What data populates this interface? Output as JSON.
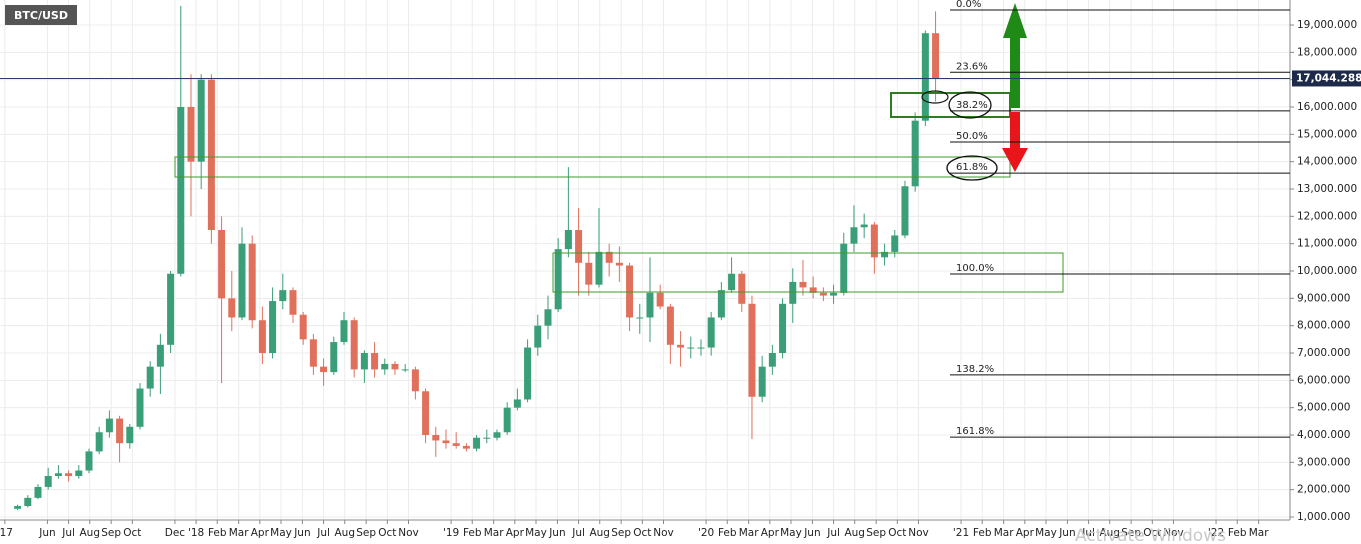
{
  "chart_data": {
    "type": "candlestick",
    "title": "BTC/USD",
    "xlim": [
      2017.231,
      2022.29
    ],
    "ylim": [
      890,
      19915
    ],
    "grid": true,
    "up_color": "#3a9e78",
    "down_color": "#e0705c",
    "yticks": [
      {
        "value": 1000,
        "label": "1,000.000"
      },
      {
        "value": 2000,
        "label": "2,000.000"
      },
      {
        "value": 3000,
        "label": "3,000.000"
      },
      {
        "value": 4000,
        "label": "4,000.000"
      },
      {
        "value": 5000,
        "label": "5,000.000"
      },
      {
        "value": 6000,
        "label": "6,000.000"
      },
      {
        "value": 7000,
        "label": "7,000.000"
      },
      {
        "value": 8000,
        "label": "8,000.000"
      },
      {
        "value": 9000,
        "label": "9,000.000"
      },
      {
        "value": 10000,
        "label": "10,000.000"
      },
      {
        "value": 11000,
        "label": "11,000.000"
      },
      {
        "value": 12000,
        "label": "12,000.000"
      },
      {
        "value": 13000,
        "label": "13,000.000"
      },
      {
        "value": 14000,
        "label": "14,000.000"
      },
      {
        "value": 15000,
        "label": "15,000.000"
      },
      {
        "value": 16000,
        "label": "16,000.000"
      },
      {
        "value": 17000,
        "label": "17,000.000"
      },
      {
        "value": 18000,
        "label": "18,000.000"
      },
      {
        "value": 19000,
        "label": "19,000.000"
      }
    ],
    "xticks": [
      {
        "value": 2017.25,
        "label": "'17"
      },
      {
        "value": 2017.417,
        "label": "Jun"
      },
      {
        "value": 2017.5,
        "label": "Jul"
      },
      {
        "value": 2017.583,
        "label": "Aug"
      },
      {
        "value": 2017.667,
        "label": "Sep"
      },
      {
        "value": 2017.75,
        "label": "Oct"
      },
      {
        "value": 2017.917,
        "label": "Dec"
      },
      {
        "value": 2018,
        "label": "'18"
      },
      {
        "value": 2018.083,
        "label": "Feb"
      },
      {
        "value": 2018.167,
        "label": "Mar"
      },
      {
        "value": 2018.25,
        "label": "Apr"
      },
      {
        "value": 2018.333,
        "label": "May"
      },
      {
        "value": 2018.417,
        "label": "Jun"
      },
      {
        "value": 2018.5,
        "label": "Jul"
      },
      {
        "value": 2018.583,
        "label": "Aug"
      },
      {
        "value": 2018.667,
        "label": "Sep"
      },
      {
        "value": 2018.75,
        "label": "Oct"
      },
      {
        "value": 2018.833,
        "label": "Nov"
      },
      {
        "value": 2019,
        "label": "'19"
      },
      {
        "value": 2019.083,
        "label": "Feb"
      },
      {
        "value": 2019.167,
        "label": "Mar"
      },
      {
        "value": 2019.25,
        "label": "Apr"
      },
      {
        "value": 2019.333,
        "label": "May"
      },
      {
        "value": 2019.417,
        "label": "Jun"
      },
      {
        "value": 2019.5,
        "label": "Jul"
      },
      {
        "value": 2019.583,
        "label": "Aug"
      },
      {
        "value": 2019.667,
        "label": "Sep"
      },
      {
        "value": 2019.75,
        "label": "Oct"
      },
      {
        "value": 2019.833,
        "label": "Nov"
      },
      {
        "value": 2020,
        "label": "'20"
      },
      {
        "value": 2020.083,
        "label": "Feb"
      },
      {
        "value": 2020.167,
        "label": "Mar"
      },
      {
        "value": 2020.25,
        "label": "Apr"
      },
      {
        "value": 2020.333,
        "label": "May"
      },
      {
        "value": 2020.417,
        "label": "Jun"
      },
      {
        "value": 2020.5,
        "label": "Jul"
      },
      {
        "value": 2020.583,
        "label": "Aug"
      },
      {
        "value": 2020.667,
        "label": "Sep"
      },
      {
        "value": 2020.75,
        "label": "Oct"
      },
      {
        "value": 2020.833,
        "label": "Nov"
      },
      {
        "value": 2021,
        "label": "'21"
      },
      {
        "value": 2021.083,
        "label": "Feb"
      },
      {
        "value": 2021.167,
        "label": "Mar"
      },
      {
        "value": 2021.25,
        "label": "Apr"
      },
      {
        "value": 2021.333,
        "label": "May"
      },
      {
        "value": 2021.417,
        "label": "Jun"
      },
      {
        "value": 2021.5,
        "label": "Jul"
      },
      {
        "value": 2021.583,
        "label": "Aug"
      },
      {
        "value": 2021.667,
        "label": "Sep"
      },
      {
        "value": 2021.75,
        "label": "Oct"
      },
      {
        "value": 2021.833,
        "label": "Nov"
      },
      {
        "value": 2022,
        "label": "'22"
      },
      {
        "value": 2022.083,
        "label": "Feb"
      },
      {
        "value": 2022.167,
        "label": "Mar"
      }
    ],
    "series": [
      {
        "x": [
          2017.3,
          2017.34,
          2017.38,
          2017.42,
          2017.46,
          2017.5,
          2017.54,
          2017.58,
          2017.62,
          2017.66,
          2017.7,
          2017.74,
          2017.78,
          2017.82,
          2017.86,
          2017.9,
          2017.94,
          2017.98,
          2018.02,
          2018.06,
          2018.1,
          2018.14,
          2018.18,
          2018.22,
          2018.26,
          2018.3,
          2018.34,
          2018.38,
          2018.42,
          2018.46,
          2018.5,
          2018.54,
          2018.58,
          2018.62,
          2018.66,
          2018.7,
          2018.74,
          2018.78,
          2018.82,
          2018.86,
          2018.9,
          2018.94,
          2018.98,
          2019.02,
          2019.06,
          2019.1,
          2019.14,
          2019.18,
          2019.22,
          2019.26,
          2019.3,
          2019.34,
          2019.38,
          2019.42,
          2019.46,
          2019.5,
          2019.54,
          2019.58,
          2019.62,
          2019.66,
          2019.7,
          2019.74,
          2019.78,
          2019.82,
          2019.86,
          2019.9,
          2019.94,
          2019.98,
          2020.02,
          2020.06,
          2020.1,
          2020.14,
          2020.18,
          2020.22,
          2020.26,
          2020.3,
          2020.34,
          2020.38,
          2020.42,
          2020.46,
          2020.5,
          2020.54,
          2020.58,
          2020.62,
          2020.66,
          2020.7,
          2020.74,
          2020.78,
          2020.82,
          2020.86,
          2020.9
        ],
        "open": [
          1300,
          1400,
          1700,
          2100,
          2500,
          2600,
          2500,
          2700,
          3400,
          4100,
          4600,
          3700,
          4300,
          5700,
          6500,
          7300,
          9900,
          16000,
          14000,
          17000,
          11500,
          9000,
          8300,
          11000,
          8200,
          7000,
          8900,
          9300,
          8400,
          7500,
          6500,
          6300,
          7400,
          8200,
          6400,
          7000,
          6400,
          6600,
          6400,
          6400,
          5600,
          4000,
          3800,
          3700,
          3600,
          3500,
          3900,
          3900,
          4100,
          5000,
          5300,
          7200,
          8000,
          8600,
          10800,
          11500,
          10300,
          9500,
          10700,
          10300,
          10200,
          8300,
          8300,
          9200,
          8700,
          7300,
          7200,
          7200,
          7200,
          8300,
          9300,
          9900,
          8800,
          5400,
          6500,
          7000,
          8800,
          9600,
          9400,
          9200,
          9100,
          9200,
          11000,
          11600,
          11700,
          10500,
          10700,
          11300,
          13100,
          15500,
          18700
        ],
        "high": [
          1450,
          1800,
          2200,
          2800,
          2900,
          2700,
          2900,
          3500,
          4300,
          4900,
          4700,
          4400,
          5900,
          6700,
          7700,
          10000,
          19700,
          17200,
          17200,
          17200,
          12000,
          10000,
          11600,
          11300,
          8700,
          9400,
          9900,
          9400,
          8500,
          7700,
          6800,
          7600,
          8500,
          8300,
          7100,
          7400,
          6800,
          6700,
          6600,
          6500,
          5700,
          4300,
          4200,
          4100,
          3700,
          4000,
          4200,
          4200,
          5200,
          5700,
          7500,
          8400,
          9100,
          11200,
          13800,
          12300,
          10700,
          12300,
          11000,
          10900,
          10300,
          8800,
          10500,
          9500,
          8800,
          7800,
          7600,
          7500,
          8500,
          9600,
          10500,
          10000,
          9100,
          6900,
          7300,
          9000,
          10100,
          10400,
          9800,
          9400,
          9500,
          11400,
          12400,
          12100,
          11800,
          11000,
          11500,
          13300,
          15800,
          18800,
          19500
        ],
        "low": [
          1250,
          1350,
          1650,
          2000,
          2400,
          2300,
          2400,
          2600,
          3300,
          3900,
          3000,
          3500,
          4200,
          5400,
          5500,
          7000,
          9800,
          12000,
          13000,
          11000,
          5900,
          7800,
          8200,
          7900,
          6600,
          6800,
          8600,
          8100,
          7300,
          6200,
          5800,
          6200,
          7300,
          6100,
          5900,
          6100,
          6200,
          6200,
          6300,
          5300,
          3700,
          3200,
          3500,
          3500,
          3400,
          3400,
          3700,
          3800,
          4000,
          4900,
          5200,
          6900,
          7500,
          8500,
          10500,
          9100,
          9100,
          9400,
          9800,
          9600,
          7800,
          7700,
          7400,
          8600,
          6600,
          6500,
          6800,
          6900,
          6900,
          8200,
          9200,
          8500,
          3850,
          5200,
          6200,
          6800,
          8100,
          9100,
          9000,
          8900,
          8800,
          9100,
          10700,
          11200,
          9900,
          10200,
          10500,
          11200,
          12900,
          15300,
          16200
        ],
        "close": [
          1400,
          1700,
          2100,
          2500,
          2600,
          2500,
          2700,
          3400,
          4100,
          4600,
          3700,
          4300,
          5700,
          6500,
          7300,
          9900,
          16000,
          14000,
          17000,
          11500,
          9000,
          8300,
          11000,
          8200,
          7000,
          8900,
          9300,
          8400,
          7500,
          6500,
          6300,
          7400,
          8200,
          6400,
          7000,
          6400,
          6600,
          6400,
          6400,
          5600,
          4000,
          3800,
          3700,
          3600,
          3500,
          3900,
          3900,
          4100,
          5000,
          5300,
          7200,
          8000,
          8600,
          10800,
          11500,
          10300,
          9500,
          10700,
          10300,
          10200,
          8300,
          8300,
          9200,
          8700,
          7300,
          7200,
          7200,
          7200,
          8300,
          9300,
          9900,
          8800,
          5400,
          6500,
          7000,
          8800,
          9600,
          9400,
          9200,
          9100,
          9200,
          11000,
          11600,
          11700,
          10500,
          10700,
          11300,
          13100,
          15500,
          18700,
          17044.288
        ]
      }
    ],
    "last_price": {
      "value": 17044.288,
      "label": "17,044.288"
    },
    "fib_levels": [
      {
        "label": "0.0%",
        "value": 19550
      },
      {
        "label": "23.6%",
        "value": 17270
      },
      {
        "label": "38.2%",
        "value": 15860
      },
      {
        "label": "50.0%",
        "value": 14720
      },
      {
        "label": "61.8%",
        "value": 13580
      },
      {
        "label": "100.0%",
        "value": 9890
      },
      {
        "label": "138.2%",
        "value": 6200
      },
      {
        "label": "161.8%",
        "value": 3920
      }
    ],
    "watermark": "Activate Windows"
  }
}
